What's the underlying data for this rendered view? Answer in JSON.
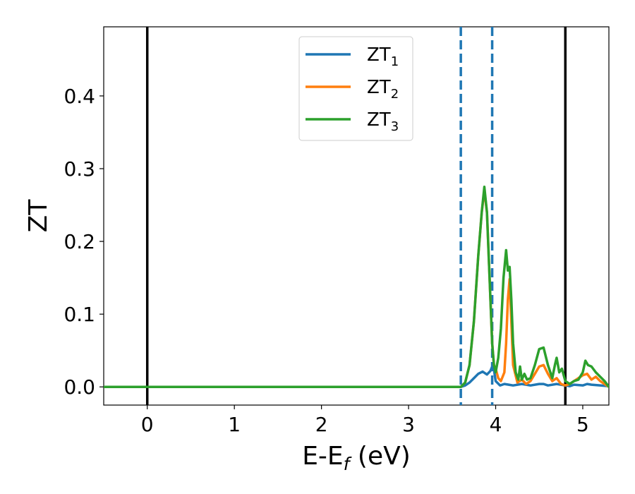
{
  "chart_data": {
    "type": "line",
    "title": "",
    "xlabel": {
      "main": "E-E",
      "sub": "f",
      "tail": " (eV)"
    },
    "ylabel": "ZT",
    "xlim": [
      -0.5,
      5.3
    ],
    "ylim": [
      -0.025,
      0.495
    ],
    "grid": false,
    "legend_position": "top-center",
    "x_ticks": [
      0,
      1,
      2,
      3,
      4,
      5
    ],
    "x_tick_labels": [
      "0",
      "1",
      "2",
      "3",
      "4",
      "5"
    ],
    "y_ticks": [
      0.0,
      0.1,
      0.2,
      0.3,
      0.4
    ],
    "y_tick_labels": [
      "0.0",
      "0.1",
      "0.2",
      "0.3",
      "0.4"
    ],
    "vertical_lines": [
      {
        "x": 0.0,
        "style": "solid",
        "color": "#000000"
      },
      {
        "x": 4.8,
        "style": "solid",
        "color": "#000000"
      },
      {
        "x": 3.6,
        "style": "dashed",
        "color": "#1f77b4"
      },
      {
        "x": 3.96,
        "style": "dashed",
        "color": "#1f77b4"
      }
    ],
    "series": [
      {
        "name": {
          "main": "ZT",
          "sub": "1"
        },
        "color": "#1f77b4",
        "x": [
          -0.5,
          3.55,
          3.6,
          3.65,
          3.7,
          3.75,
          3.8,
          3.85,
          3.9,
          3.94,
          3.96,
          3.98,
          4.0,
          4.05,
          4.1,
          4.15,
          4.2,
          4.3,
          4.4,
          4.5,
          4.55,
          4.6,
          4.7,
          4.8,
          4.85,
          4.9,
          5.0,
          5.05,
          5.1,
          5.2,
          5.3
        ],
        "y": [
          0.0,
          0.0,
          0.0,
          0.002,
          0.006,
          0.012,
          0.018,
          0.021,
          0.017,
          0.022,
          0.028,
          0.024,
          0.008,
          0.002,
          0.004,
          0.003,
          0.002,
          0.004,
          0.002,
          0.004,
          0.004,
          0.002,
          0.004,
          0.002,
          0.001,
          0.003,
          0.002,
          0.004,
          0.003,
          0.002,
          0.001
        ]
      },
      {
        "name": {
          "main": "ZT",
          "sub": "2"
        },
        "color": "#ff7f0e",
        "x": [
          -0.5,
          3.55,
          3.6,
          3.65,
          3.7,
          3.75,
          3.8,
          3.84,
          3.87,
          3.9,
          3.93,
          3.96,
          3.98,
          4.0,
          4.03,
          4.06,
          4.1,
          4.12,
          4.14,
          4.16,
          4.18,
          4.2,
          4.25,
          4.3,
          4.35,
          4.4,
          4.45,
          4.5,
          4.55,
          4.6,
          4.65,
          4.7,
          4.75,
          4.8,
          4.85,
          4.9,
          4.95,
          5.0,
          5.05,
          5.1,
          5.15,
          5.2,
          5.25,
          5.3
        ],
        "y": [
          0.0,
          0.0,
          0.0,
          0.006,
          0.03,
          0.09,
          0.18,
          0.24,
          0.27,
          0.24,
          0.15,
          0.06,
          0.03,
          0.025,
          0.012,
          0.008,
          0.02,
          0.06,
          0.12,
          0.148,
          0.09,
          0.03,
          0.006,
          0.01,
          0.004,
          0.008,
          0.018,
          0.028,
          0.03,
          0.018,
          0.008,
          0.012,
          0.004,
          0.002,
          0.004,
          0.008,
          0.012,
          0.016,
          0.018,
          0.01,
          0.014,
          0.008,
          0.004,
          0.0
        ]
      },
      {
        "name": {
          "main": "ZT",
          "sub": "3"
        },
        "color": "#2ca02c",
        "x": [
          -0.5,
          3.55,
          3.6,
          3.65,
          3.7,
          3.75,
          3.8,
          3.84,
          3.87,
          3.9,
          3.93,
          3.96,
          3.98,
          4.0,
          4.03,
          4.06,
          4.09,
          4.12,
          4.14,
          4.16,
          4.18,
          4.2,
          4.23,
          4.26,
          4.28,
          4.3,
          4.33,
          4.36,
          4.4,
          4.45,
          4.5,
          4.55,
          4.6,
          4.65,
          4.68,
          4.7,
          4.73,
          4.76,
          4.8,
          4.85,
          4.9,
          4.95,
          5.0,
          5.03,
          5.06,
          5.1,
          5.15,
          5.2,
          5.25,
          5.3
        ],
        "y": [
          0.0,
          0.0,
          0.0,
          0.006,
          0.03,
          0.09,
          0.18,
          0.24,
          0.275,
          0.24,
          0.15,
          0.06,
          0.03,
          0.02,
          0.04,
          0.08,
          0.15,
          0.188,
          0.16,
          0.165,
          0.12,
          0.06,
          0.02,
          0.01,
          0.028,
          0.01,
          0.018,
          0.01,
          0.012,
          0.03,
          0.052,
          0.054,
          0.03,
          0.012,
          0.03,
          0.04,
          0.02,
          0.025,
          0.008,
          0.004,
          0.008,
          0.01,
          0.02,
          0.036,
          0.03,
          0.028,
          0.02,
          0.014,
          0.008,
          0.0
        ]
      }
    ]
  }
}
